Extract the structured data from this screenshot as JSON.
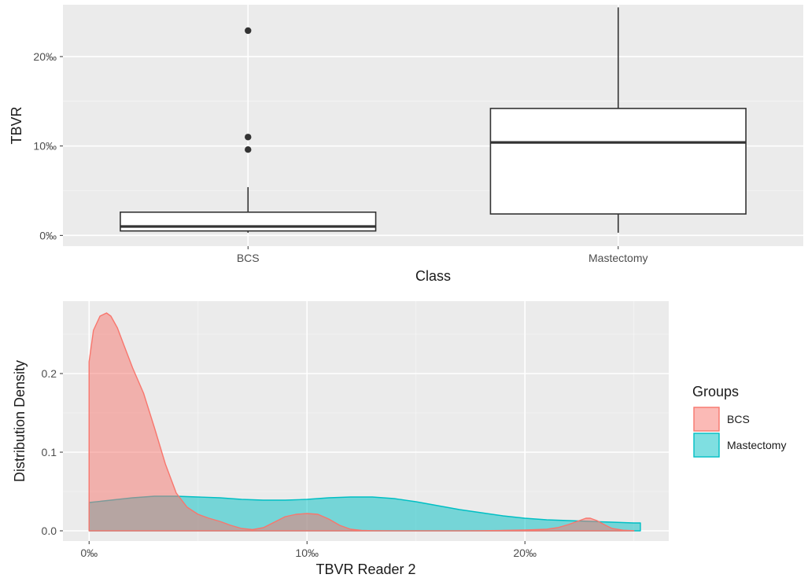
{
  "chart_data": [
    {
      "type": "box",
      "title": "",
      "xlabel": "Class",
      "ylabel": "TBVR",
      "categories": [
        "BCS",
        "Mastectomy"
      ],
      "y_tick_labels": [
        "0‰",
        "10‰",
        "20‰"
      ],
      "y_ticks": [
        0,
        10,
        20
      ],
      "ylim": [
        -1.2,
        25.8
      ],
      "grid": true,
      "boxes": [
        {
          "category": "BCS",
          "whisker_low": 0.3,
          "q1": 0.5,
          "median": 1.0,
          "q3": 2.6,
          "whisker_high": 5.4,
          "outliers": [
            9.6,
            11.0,
            22.9
          ]
        },
        {
          "category": "Mastectomy",
          "whisker_low": 0.3,
          "q1": 2.4,
          "median": 10.4,
          "q3": 14.2,
          "whisker_high": 25.5,
          "outliers": []
        }
      ]
    },
    {
      "type": "area",
      "title": "",
      "xlabel": "TBVR  Reader  2",
      "ylabel": "Distribution  Density",
      "x_tick_labels": [
        "0‰",
        "10‰",
        "20‰"
      ],
      "x_ticks": [
        0,
        10,
        20
      ],
      "y_tick_labels": [
        "0.0",
        "0.1",
        "0.2"
      ],
      "y_ticks": [
        0,
        0.1,
        0.2
      ],
      "xlim": [
        -1.2,
        26.6
      ],
      "ylim": [
        -0.013,
        0.292
      ],
      "grid": true,
      "legend": {
        "title": "Groups",
        "position": "right"
      },
      "series": [
        {
          "name": "BCS",
          "color": "#F8766D",
          "fill": "#F8766D",
          "x": [
            0,
            0.2,
            0.5,
            0.8,
            1.0,
            1.3,
            1.6,
            2.0,
            2.5,
            3.0,
            3.5,
            4.0,
            4.5,
            5.0,
            5.5,
            6.0,
            6.5,
            7.0,
            7.5,
            8.0,
            8.5,
            9.0,
            9.5,
            10.0,
            10.5,
            11.0,
            11.5,
            12.0,
            12.5,
            13.0,
            14,
            15,
            16,
            17,
            18,
            19,
            20,
            21,
            21.5,
            22.0,
            22.5,
            22.8,
            23.0,
            23.3,
            23.7,
            24.0,
            24.5,
            25.0
          ],
          "y": [
            0.215,
            0.255,
            0.273,
            0.277,
            0.273,
            0.258,
            0.236,
            0.207,
            0.175,
            0.131,
            0.085,
            0.048,
            0.03,
            0.021,
            0.016,
            0.012,
            0.007,
            0.003,
            0.0015,
            0.004,
            0.011,
            0.018,
            0.021,
            0.022,
            0.021,
            0.015,
            0.007,
            0.002,
            0.0005,
            0.0002,
            0.0001,
            0.0001,
            0.0001,
            0.0001,
            0.0002,
            0.0005,
            0.001,
            0.002,
            0.004,
            0.008,
            0.013,
            0.016,
            0.016,
            0.013,
            0.007,
            0.003,
            0.0008,
            0.0002
          ]
        },
        {
          "name": "Mastectomy",
          "color": "#00BFC4",
          "fill": "#00BFC4",
          "x": [
            0,
            1,
            2,
            3,
            4,
            5,
            6,
            7,
            8,
            9,
            10,
            11,
            12,
            13,
            14,
            15,
            16,
            17,
            18,
            19,
            20,
            21,
            22,
            23,
            24,
            25,
            25.3
          ],
          "y": [
            0.036,
            0.039,
            0.042,
            0.044,
            0.044,
            0.043,
            0.042,
            0.04,
            0.039,
            0.039,
            0.04,
            0.042,
            0.043,
            0.043,
            0.041,
            0.037,
            0.032,
            0.027,
            0.023,
            0.019,
            0.016,
            0.014,
            0.013,
            0.012,
            0.011,
            0.01,
            0.01
          ]
        }
      ]
    }
  ]
}
